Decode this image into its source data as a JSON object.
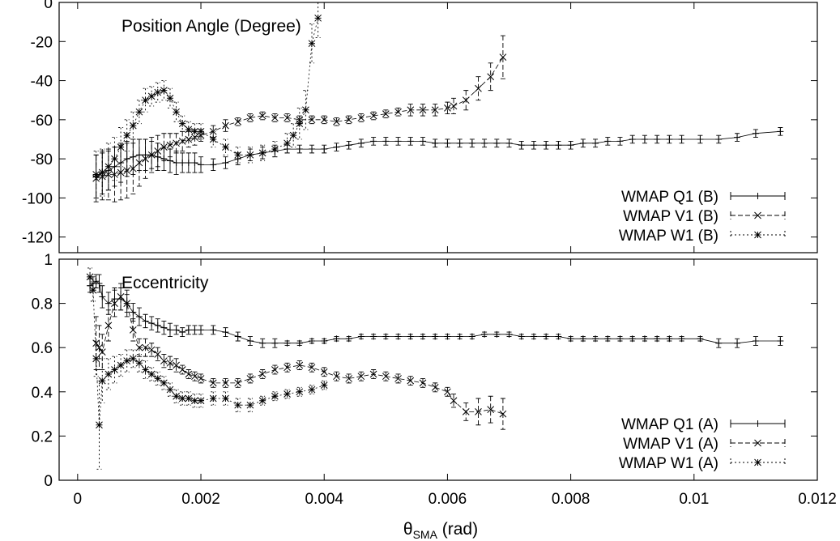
{
  "chart_data": [
    {
      "type": "line",
      "title": "Position Angle (Degree)",
      "xlabel": "",
      "ylabel": "",
      "xlim": [
        -0.0003,
        0.012
      ],
      "ylim": [
        -128,
        0
      ],
      "yticks": [
        "0",
        "-20",
        "-40",
        "-60",
        "-80",
        "-100",
        "-120"
      ],
      "ytick_values": [
        0,
        -20,
        -40,
        -60,
        -80,
        -100,
        -120
      ],
      "series": [
        {
          "name": "WMAP Q1 (B)",
          "marker": "plus",
          "dash": "",
          "x": [
            0.0003,
            0.0004,
            0.0005,
            0.0006,
            0.0007,
            0.0008,
            0.0009,
            0.001,
            0.0011,
            0.0012,
            0.0013,
            0.0014,
            0.0015,
            0.0016,
            0.0017,
            0.0018,
            0.0019,
            0.002,
            0.0022,
            0.0024,
            0.0026,
            0.0028,
            0.003,
            0.0032,
            0.0034,
            0.0036,
            0.0038,
            0.004,
            0.0042,
            0.0044,
            0.0046,
            0.0048,
            0.005,
            0.0052,
            0.0054,
            0.0056,
            0.0058,
            0.006,
            0.0062,
            0.0064,
            0.0066,
            0.0068,
            0.007,
            0.0072,
            0.0074,
            0.0076,
            0.0078,
            0.008,
            0.0082,
            0.0084,
            0.0086,
            0.0088,
            0.009,
            0.0092,
            0.0094,
            0.0096,
            0.0098,
            0.0101,
            0.0104,
            0.0107,
            0.011,
            0.0114
          ],
          "y": [
            -89,
            -87,
            -86,
            -84,
            -82,
            -80,
            -79,
            -78,
            -78,
            -78,
            -79,
            -80,
            -81,
            -82,
            -82,
            -82,
            -82,
            -83,
            -83,
            -82,
            -80,
            -78,
            -77,
            -76,
            -75,
            -75,
            -75,
            -75,
            -74,
            -73,
            -72,
            -71,
            -71,
            -71,
            -71,
            -71,
            -72,
            -72,
            -72,
            -72,
            -72,
            -72,
            -72,
            -73,
            -73,
            -73,
            -73,
            -73,
            -72,
            -72,
            -71,
            -71,
            -70,
            -70,
            -70,
            -70,
            -70,
            -70,
            -70,
            -69,
            -67,
            -66
          ],
          "err": [
            11,
            11,
            10,
            10,
            10,
            9,
            9,
            8,
            8,
            7,
            7,
            6,
            6,
            6,
            5,
            5,
            5,
            4,
            3,
            3,
            3,
            3,
            3,
            3,
            2,
            2,
            2,
            2,
            2,
            2,
            2,
            2,
            2,
            2,
            2,
            2,
            2,
            2,
            2,
            2,
            2,
            2,
            2,
            2,
            2,
            2,
            2,
            2,
            2,
            2,
            2,
            2,
            2,
            2,
            2,
            2,
            2,
            2,
            2,
            2,
            2,
            2
          ]
        },
        {
          "name": "WMAP V1 (B)",
          "marker": "cross",
          "dash": "6,3",
          "x": [
            0.0003,
            0.0004,
            0.0005,
            0.0006,
            0.0007,
            0.0008,
            0.0009,
            0.001,
            0.0011,
            0.0012,
            0.0013,
            0.0014,
            0.0015,
            0.0016,
            0.0017,
            0.0018,
            0.0019,
            0.002,
            0.0022,
            0.0024,
            0.0026,
            0.0028,
            0.003,
            0.0032,
            0.0034,
            0.0036,
            0.0038,
            0.004,
            0.0042,
            0.0044,
            0.0046,
            0.0048,
            0.005,
            0.0052,
            0.0054,
            0.0056,
            0.0058,
            0.006,
            0.0061,
            0.0063,
            0.0065,
            0.0067,
            0.0069
          ],
          "y": [
            -90,
            -89,
            -88,
            -88,
            -87,
            -86,
            -85,
            -82,
            -80,
            -78,
            -76,
            -74,
            -73,
            -72,
            -71,
            -70,
            -69,
            -68,
            -66,
            -63,
            -61,
            -59,
            -58,
            -59,
            -59,
            -60,
            -60,
            -60,
            -61,
            -60,
            -59,
            -58,
            -57,
            -56,
            -55,
            -55,
            -55,
            -54,
            -53,
            -50,
            -44,
            -38,
            -28
          ],
          "err": [
            12,
            12,
            13,
            14,
            14,
            14,
            13,
            12,
            10,
            9,
            8,
            7,
            6,
            5,
            5,
            4,
            4,
            3,
            3,
            3,
            2,
            2,
            2,
            2,
            2,
            2,
            2,
            2,
            2,
            2,
            2,
            2,
            2,
            2,
            3,
            3,
            3,
            3,
            4,
            5,
            6,
            7,
            11
          ]
        },
        {
          "name": "WMAP W1 (B)",
          "marker": "star",
          "dash": "2,3",
          "x": [
            0.0003,
            0.0004,
            0.0005,
            0.0006,
            0.0007,
            0.0008,
            0.0009,
            0.001,
            0.0011,
            0.0012,
            0.0013,
            0.0014,
            0.0015,
            0.0016,
            0.0017,
            0.0018,
            0.0019,
            0.002,
            0.0022,
            0.0024,
            0.0026,
            0.0028,
            0.003,
            0.0032,
            0.0034,
            0.0035,
            0.0036,
            0.0037,
            0.0038,
            0.0039
          ],
          "y": [
            -88,
            -87,
            -84,
            -80,
            -74,
            -68,
            -63,
            -56,
            -50,
            -48,
            -46,
            -45,
            -49,
            -56,
            -62,
            -65,
            -66,
            -66,
            -70,
            -74,
            -78,
            -78,
            -77,
            -75,
            -72,
            -68,
            -62,
            -55,
            -21,
            -8
          ],
          "err": [
            12,
            12,
            12,
            11,
            10,
            8,
            7,
            6,
            6,
            5,
            5,
            5,
            5,
            5,
            4,
            4,
            4,
            4,
            4,
            4,
            4,
            4,
            4,
            4,
            5,
            6,
            8,
            10,
            10,
            10
          ]
        }
      ]
    },
    {
      "type": "line",
      "title": "Eccentricity",
      "xlabel": "θSMA (rad)",
      "xlabel_main": "θ",
      "xlabel_sub": "SMA",
      "xlabel_unit": " (rad)",
      "ylabel": "",
      "xlim": [
        -0.0003,
        0.012
      ],
      "ylim": [
        0,
        1
      ],
      "xticks": [
        "0",
        "0.002",
        "0.004",
        "0.006",
        "0.008",
        "0.01",
        "0.012"
      ],
      "xtick_values": [
        0,
        0.002,
        0.004,
        0.006,
        0.008,
        0.01,
        0.012
      ],
      "yticks": [
        "0",
        "0.2",
        "0.4",
        "0.6",
        "0.8",
        "1"
      ],
      "ytick_values": [
        0,
        0.2,
        0.4,
        0.6,
        0.8,
        1
      ],
      "series": [
        {
          "name": "WMAP Q1 (A)",
          "marker": "plus",
          "dash": "",
          "x": [
            0.0002,
            0.00025,
            0.0003,
            0.00035,
            0.0004,
            0.0005,
            0.0006,
            0.0007,
            0.0008,
            0.0009,
            0.001,
            0.0011,
            0.0012,
            0.0013,
            0.0014,
            0.0015,
            0.0016,
            0.0017,
            0.0018,
            0.0019,
            0.002,
            0.0022,
            0.0024,
            0.0026,
            0.0028,
            0.003,
            0.0032,
            0.0034,
            0.0036,
            0.0038,
            0.004,
            0.0042,
            0.0044,
            0.0046,
            0.0048,
            0.005,
            0.0052,
            0.0054,
            0.0056,
            0.0058,
            0.006,
            0.0062,
            0.0064,
            0.0066,
            0.0068,
            0.007,
            0.0072,
            0.0074,
            0.0076,
            0.0078,
            0.008,
            0.0082,
            0.0084,
            0.0086,
            0.0088,
            0.009,
            0.0092,
            0.0094,
            0.0096,
            0.0098,
            0.0101,
            0.0104,
            0.0107,
            0.011,
            0.0114
          ],
          "y": [
            0.88,
            0.89,
            0.9,
            0.89,
            0.83,
            0.8,
            0.82,
            0.82,
            0.8,
            0.76,
            0.74,
            0.72,
            0.71,
            0.7,
            0.69,
            0.68,
            0.68,
            0.67,
            0.68,
            0.68,
            0.68,
            0.68,
            0.67,
            0.65,
            0.63,
            0.62,
            0.62,
            0.62,
            0.62,
            0.63,
            0.63,
            0.64,
            0.64,
            0.65,
            0.65,
            0.65,
            0.65,
            0.65,
            0.65,
            0.65,
            0.65,
            0.65,
            0.65,
            0.66,
            0.66,
            0.66,
            0.65,
            0.65,
            0.65,
            0.65,
            0.64,
            0.64,
            0.64,
            0.64,
            0.64,
            0.64,
            0.64,
            0.64,
            0.64,
            0.64,
            0.64,
            0.62,
            0.62,
            0.63,
            0.63
          ],
          "err": [
            0.03,
            0.03,
            0.03,
            0.04,
            0.05,
            0.05,
            0.05,
            0.05,
            0.04,
            0.04,
            0.04,
            0.03,
            0.03,
            0.03,
            0.03,
            0.03,
            0.02,
            0.02,
            0.02,
            0.02,
            0.02,
            0.02,
            0.02,
            0.02,
            0.02,
            0.02,
            0.02,
            0.01,
            0.01,
            0.01,
            0.01,
            0.01,
            0.01,
            0.01,
            0.01,
            0.01,
            0.01,
            0.01,
            0.01,
            0.01,
            0.01,
            0.01,
            0.01,
            0.01,
            0.01,
            0.01,
            0.01,
            0.01,
            0.01,
            0.01,
            0.01,
            0.01,
            0.01,
            0.01,
            0.01,
            0.01,
            0.01,
            0.01,
            0.01,
            0.01,
            0.01,
            0.02,
            0.02,
            0.02,
            0.02
          ]
        },
        {
          "name": "WMAP V1 (A)",
          "marker": "cross",
          "dash": "6,3",
          "x": [
            0.0003,
            0.00035,
            0.0004,
            0.0005,
            0.0006,
            0.0007,
            0.0008,
            0.0009,
            0.001,
            0.0011,
            0.0012,
            0.0013,
            0.0014,
            0.0015,
            0.0016,
            0.0017,
            0.0018,
            0.0019,
            0.002,
            0.0022,
            0.0024,
            0.0026,
            0.0028,
            0.003,
            0.0032,
            0.0034,
            0.0036,
            0.0038,
            0.004,
            0.0042,
            0.0044,
            0.0046,
            0.0048,
            0.005,
            0.0052,
            0.0054,
            0.0056,
            0.0058,
            0.006,
            0.0061,
            0.0063,
            0.0065,
            0.0067,
            0.0069
          ],
          "y": [
            0.62,
            0.6,
            0.58,
            0.7,
            0.8,
            0.83,
            0.8,
            0.68,
            0.6,
            0.6,
            0.59,
            0.57,
            0.54,
            0.53,
            0.52,
            0.5,
            0.48,
            0.47,
            0.46,
            0.44,
            0.44,
            0.44,
            0.46,
            0.48,
            0.5,
            0.51,
            0.52,
            0.51,
            0.49,
            0.47,
            0.46,
            0.47,
            0.48,
            0.47,
            0.46,
            0.45,
            0.44,
            0.42,
            0.4,
            0.36,
            0.31,
            0.31,
            0.32,
            0.3
          ],
          "err": [
            0.12,
            0.1,
            0.08,
            0.07,
            0.06,
            0.06,
            0.06,
            0.05,
            0.04,
            0.04,
            0.03,
            0.03,
            0.03,
            0.03,
            0.03,
            0.02,
            0.02,
            0.02,
            0.02,
            0.02,
            0.02,
            0.02,
            0.02,
            0.02,
            0.02,
            0.02,
            0.02,
            0.02,
            0.02,
            0.02,
            0.02,
            0.02,
            0.02,
            0.02,
            0.02,
            0.02,
            0.02,
            0.02,
            0.02,
            0.03,
            0.04,
            0.06,
            0.06,
            0.07
          ]
        },
        {
          "name": "WMAP W1 (A)",
          "marker": "star",
          "dash": "2,3",
          "x": [
            0.0002,
            0.00025,
            0.0003,
            0.00035,
            0.0004,
            0.0005,
            0.0006,
            0.0007,
            0.0008,
            0.0009,
            0.001,
            0.0011,
            0.0012,
            0.0013,
            0.0014,
            0.0015,
            0.0016,
            0.0017,
            0.0018,
            0.0019,
            0.002,
            0.0022,
            0.0024,
            0.0026,
            0.0028,
            0.003,
            0.0032,
            0.0034,
            0.0036,
            0.0038,
            0.004
          ],
          "y": [
            0.92,
            0.86,
            0.55,
            0.25,
            0.45,
            0.48,
            0.5,
            0.52,
            0.54,
            0.55,
            0.53,
            0.5,
            0.48,
            0.46,
            0.44,
            0.41,
            0.38,
            0.37,
            0.37,
            0.36,
            0.36,
            0.37,
            0.37,
            0.34,
            0.34,
            0.36,
            0.38,
            0.39,
            0.4,
            0.41,
            0.43
          ],
          "err": [
            0.04,
            0.05,
            0.08,
            0.2,
            0.1,
            0.07,
            0.06,
            0.05,
            0.05,
            0.04,
            0.04,
            0.04,
            0.03,
            0.03,
            0.03,
            0.03,
            0.03,
            0.03,
            0.03,
            0.03,
            0.03,
            0.03,
            0.03,
            0.03,
            0.03,
            0.02,
            0.02,
            0.02,
            0.02,
            0.02,
            0.02
          ]
        }
      ]
    }
  ]
}
